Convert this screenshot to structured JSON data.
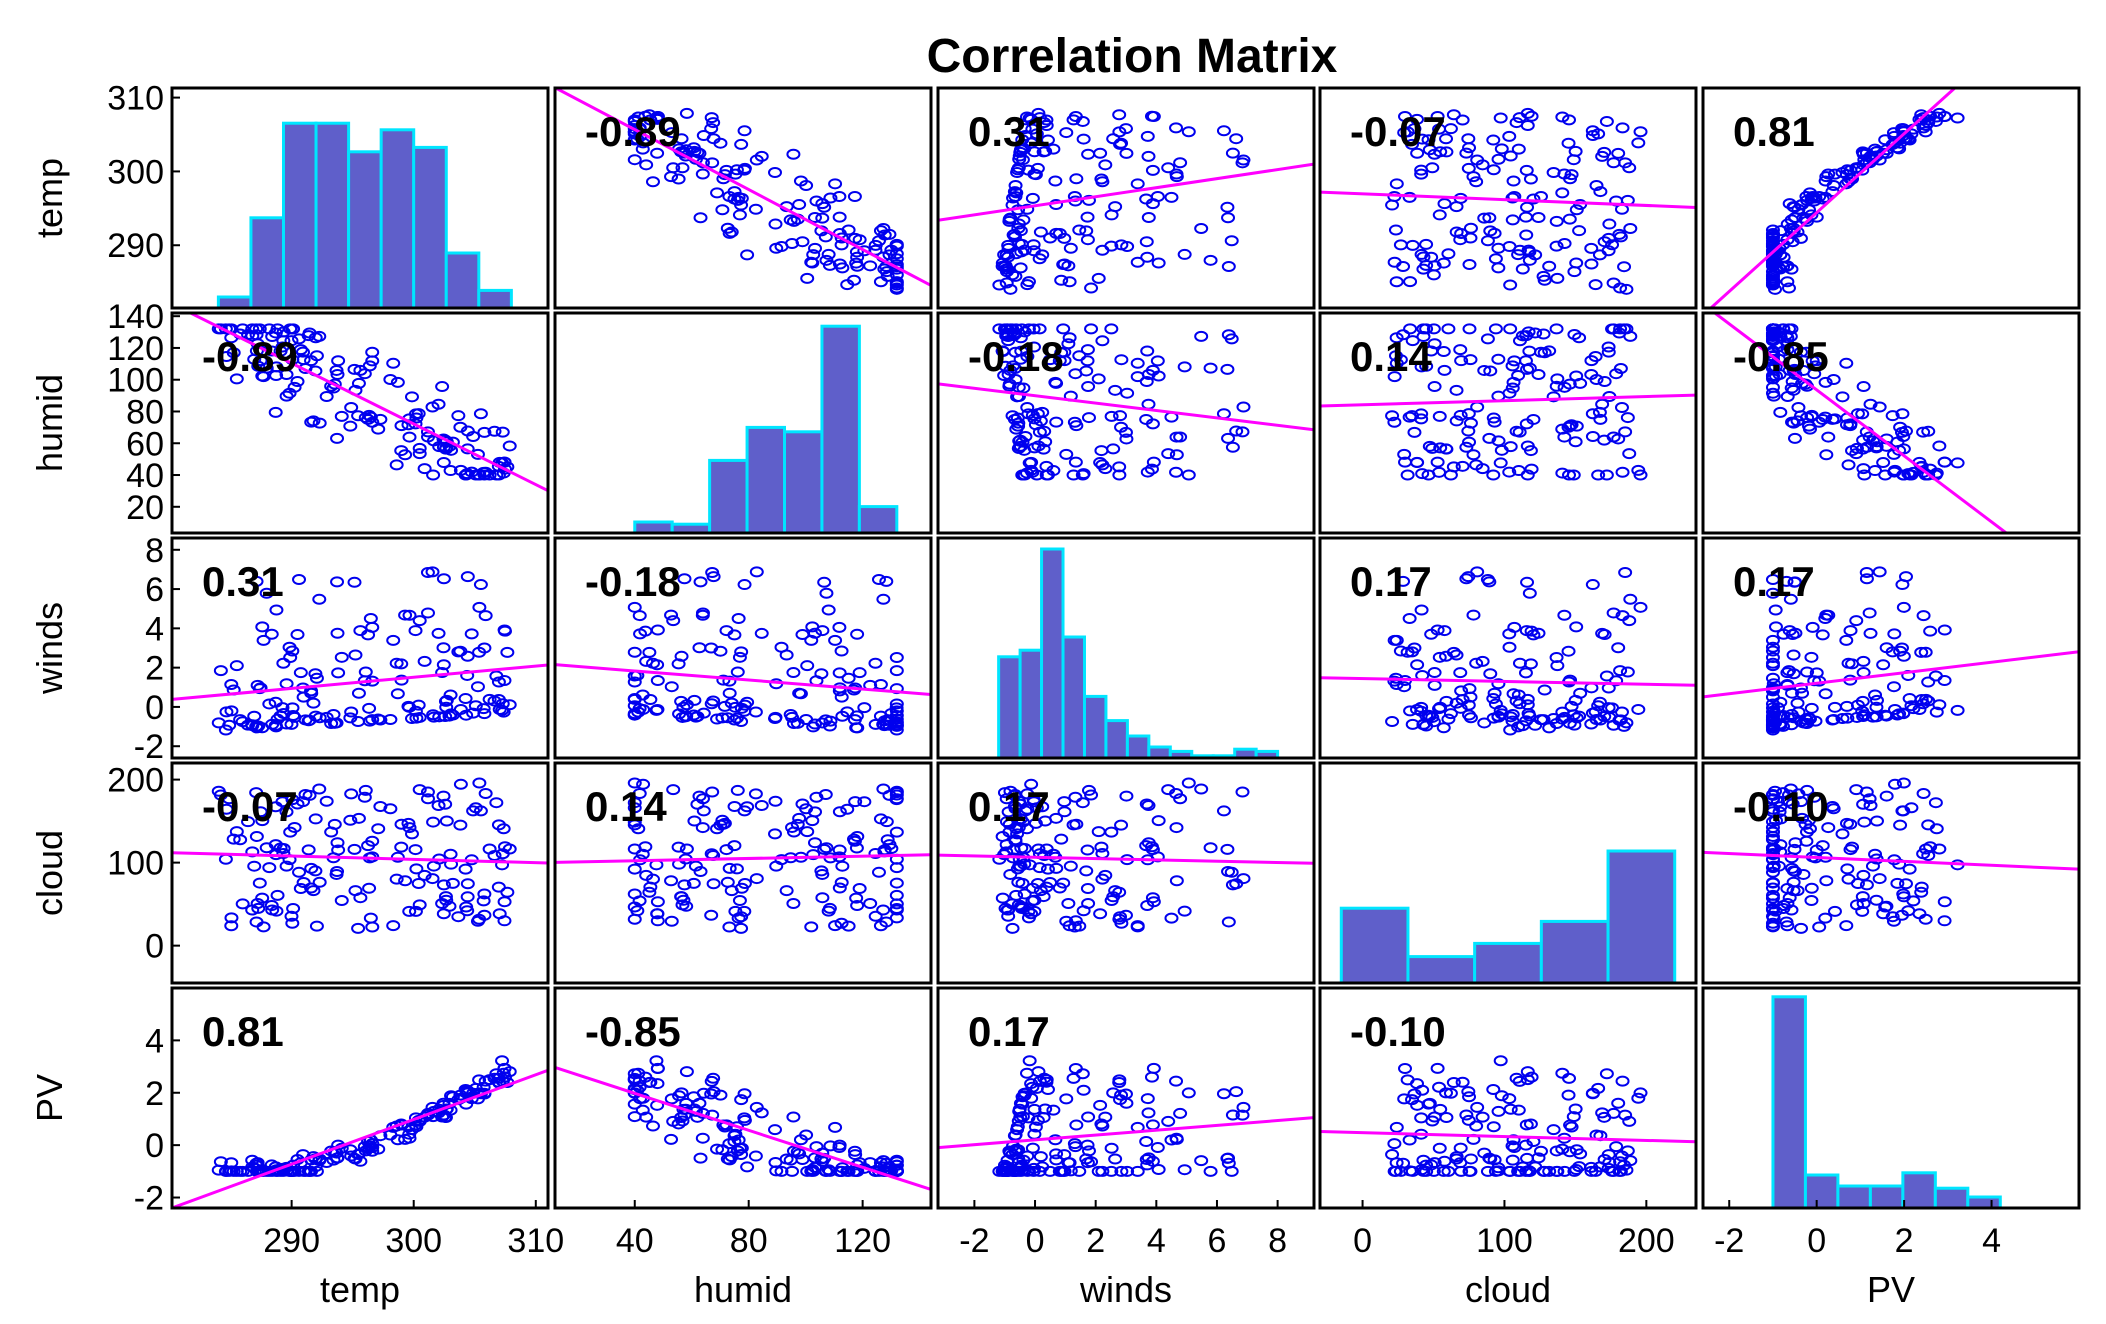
{
  "chart_data": {
    "type": "scatter",
    "title": "Correlation Matrix",
    "variables": [
      "temp",
      "humid",
      "winds",
      "cloud",
      "PV"
    ],
    "x_ticks": [
      [
        "290",
        "300",
        "310"
      ],
      [
        "40",
        "80",
        "120"
      ],
      [
        "-2",
        "0",
        "2",
        "4",
        "6",
        "8"
      ],
      [
        "0",
        "100",
        "200"
      ],
      [
        "-2",
        "0",
        "2",
        "4"
      ]
    ],
    "y_ticks": [
      [
        "290",
        "300",
        "310"
      ],
      [
        "20",
        "40",
        "60",
        "80",
        "100",
        "120",
        "140"
      ],
      [
        "-2",
        "0",
        "2",
        "4",
        "6",
        "8"
      ],
      [
        "0",
        "100",
        "200"
      ],
      [
        "-2",
        "0",
        "2",
        "4"
      ]
    ],
    "correlations": [
      [
        null,
        "-0.89",
        "0.31",
        "-0.07",
        "0.81"
      ],
      [
        "-0.89",
        null,
        "-0.18",
        "0.14",
        "-0.85"
      ],
      [
        "0.31",
        "-0.18",
        null,
        "0.17",
        "0.17"
      ],
      [
        "-0.07",
        "0.14",
        "0.17",
        null,
        "-0.10"
      ],
      [
        "0.81",
        "-0.85",
        "0.17",
        "-0.10",
        null
      ]
    ],
    "x_ranges": [
      [
        280.2,
        311
      ],
      [
        12,
        144
      ],
      [
        -3.2,
        9.2
      ],
      [
        -30,
        235
      ],
      [
        -2.6,
        6
      ]
    ],
    "y_ranges": [
      [
        281.5,
        311.3
      ],
      [
        3.5,
        142
      ],
      [
        -2.6,
        8.6
      ],
      [
        -45,
        220
      ],
      [
        -2.4,
        6
      ]
    ],
    "ranges": [
      [
        284,
        308
      ],
      [
        40,
        132
      ],
      [
        -1.2,
        8
      ],
      [
        -15,
        220
      ],
      [
        -1,
        4.2
      ]
    ],
    "grid": false,
    "colors": {
      "points": "#0000ee",
      "fit_line": "#ff00ff",
      "hist_edge": "#00e5ff",
      "hist_fill": "#2a2ab8"
    }
  }
}
